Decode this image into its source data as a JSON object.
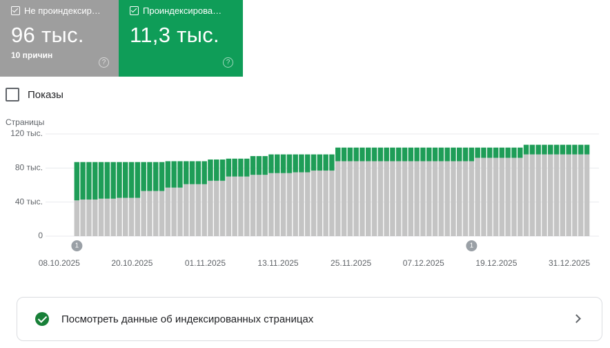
{
  "chart_data": {
    "type": "stacked-bar",
    "y_label": "Страницы",
    "series": [
      {
        "name": "Не проиндексир…",
        "summary": "96 тыс.",
        "note": "10 причин",
        "color": "#c4c4c4",
        "values": [
          42,
          43,
          43,
          43,
          44,
          44,
          44,
          45,
          45,
          45,
          45,
          53,
          53,
          53,
          53,
          57,
          57,
          57,
          61,
          61,
          61,
          61,
          65,
          65,
          65,
          70,
          70,
          70,
          70,
          72,
          72,
          72,
          74,
          74,
          74,
          74,
          75,
          75,
          75,
          77,
          77,
          77,
          77,
          88,
          88,
          88,
          88,
          88,
          88,
          88,
          88,
          88,
          88,
          88,
          88,
          88,
          88,
          88,
          88,
          88,
          88,
          88,
          88,
          88,
          88,
          88,
          92,
          92,
          92,
          92,
          92,
          92,
          92,
          92,
          96,
          96,
          96,
          96,
          96,
          96,
          96,
          96,
          96,
          96,
          96
        ]
      },
      {
        "name": "Проиндексирова…",
        "summary": "11,3 тыс.",
        "color": "#1e9d57",
        "values": [
          45,
          44,
          44,
          44,
          43,
          43,
          43,
          42,
          42,
          42,
          42,
          34,
          34,
          34,
          34,
          31,
          31,
          31,
          27,
          27,
          27,
          27,
          25,
          25,
          25,
          21,
          21,
          21,
          21,
          22,
          22,
          22,
          22,
          22,
          22,
          22,
          21,
          21,
          21,
          19,
          19,
          19,
          19,
          16,
          16,
          16,
          16,
          16,
          16,
          16,
          16,
          16,
          16,
          16,
          16,
          16,
          16,
          16,
          16,
          16,
          16,
          16,
          16,
          16,
          16,
          16,
          12,
          12,
          12,
          12,
          12,
          12,
          12,
          12,
          11.3,
          11.3,
          11.3,
          11.3,
          11.3,
          11.3,
          11.3,
          11.3,
          11.3,
          11.3,
          11.3
        ]
      }
    ],
    "categories": [
      "08.10.2025",
      null,
      null,
      null,
      null,
      null,
      null,
      null,
      null,
      null,
      null,
      null,
      "20.10.2025",
      null,
      null,
      null,
      null,
      null,
      null,
      null,
      null,
      null,
      null,
      null,
      "01.11.2025",
      null,
      null,
      null,
      null,
      null,
      null,
      null,
      null,
      null,
      null,
      null,
      "13.11.2025",
      null,
      null,
      null,
      null,
      null,
      null,
      null,
      null,
      null,
      null,
      null,
      "25.11.2025",
      null,
      null,
      null,
      null,
      null,
      null,
      null,
      null,
      null,
      null,
      null,
      "07.12.2025",
      null,
      null,
      null,
      null,
      null,
      null,
      null,
      null,
      null,
      null,
      null,
      "19.12.2025",
      null,
      null,
      null,
      null,
      null,
      null,
      null,
      null,
      null,
      null,
      null,
      "31.12.2025"
    ],
    "ylim": [
      0,
      120
    ],
    "yticks": [
      0,
      {
        "value": 40,
        "label": "40 тыс."
      },
      {
        "value": 80,
        "label": "80 тыс."
      },
      {
        "value": 120,
        "label": "120 тыс."
      }
    ],
    "grid": true,
    "annotations": [
      {
        "x": 0,
        "label": "1"
      },
      {
        "x": 65,
        "label": "1"
      }
    ]
  },
  "impressions_toggle": "Показы",
  "link": "Посмотреть данные об индексированных страницах"
}
